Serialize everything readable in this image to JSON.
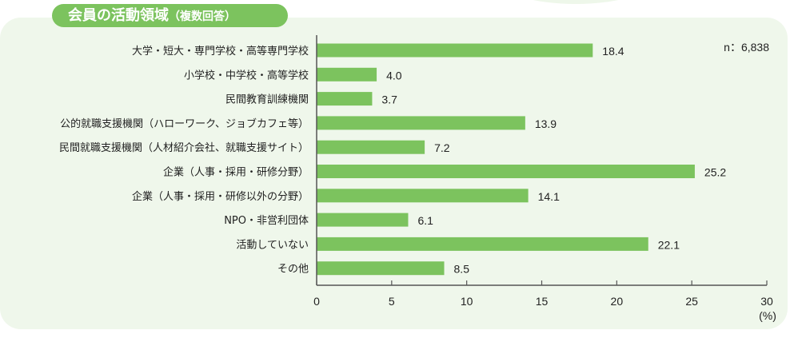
{
  "title": "会員の活動領域",
  "title_note": "（複数回答）",
  "chart_data": {
    "type": "bar",
    "orientation": "horizontal",
    "title": "会員の活動領域（複数回答）",
    "note": "n：6,838",
    "xlabel": "(%)",
    "xlim": [
      0,
      30
    ],
    "ticks": [
      "0",
      "5",
      "10",
      "15",
      "20",
      "25",
      "30"
    ],
    "categories": [
      "大学・短大・専門学校・高等専門学校",
      "小学校・中学校・高等学校",
      "民間教育訓練機関",
      "公的就職支援機関（ハローワーク、ジョブカフェ等）",
      "民間就職支援機関（人材紹介会社、就職支援サイト）",
      "企業（人事・採用・研修分野）",
      "企業（人事・採用・研修以外の分野）",
      "NPO・非営利団体",
      "活動していない",
      "その他"
    ],
    "values": [
      18.4,
      4.0,
      3.7,
      13.9,
      7.2,
      25.2,
      14.1,
      6.1,
      22.1,
      8.5
    ],
    "bar_color": "#7cc35e"
  }
}
